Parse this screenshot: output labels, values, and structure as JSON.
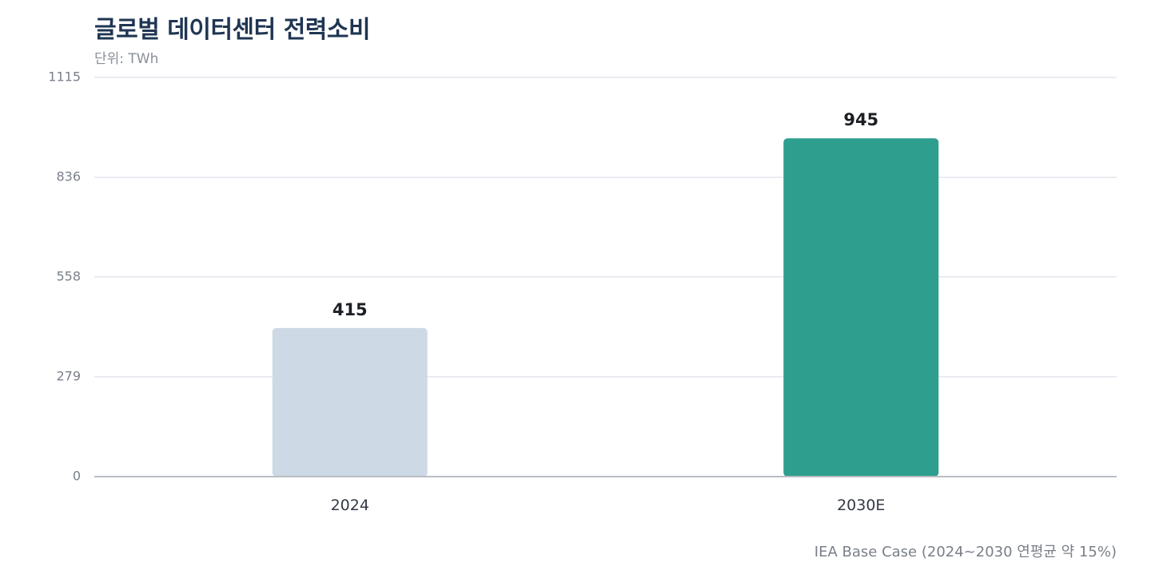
{
  "chart_data": {
    "type": "bar",
    "title": "글로벌 데이터센터 전력소비",
    "subtitle": "단위: TWh",
    "note": "IEA Base Case (2024~2030 연평균 약 15%)",
    "categories": [
      "2024",
      "2030E"
    ],
    "values": [
      415,
      945
    ],
    "data_labels": [
      "415",
      "945"
    ],
    "bar_colors": [
      "#cdd9e4",
      "#2e9e8e"
    ],
    "ylim": [
      0,
      1115
    ],
    "yticks": [
      0,
      279,
      558,
      836,
      1115
    ],
    "ytick_labels": [
      "0",
      "279",
      "558",
      "836",
      "1115"
    ],
    "grid": true,
    "legend": "none"
  }
}
